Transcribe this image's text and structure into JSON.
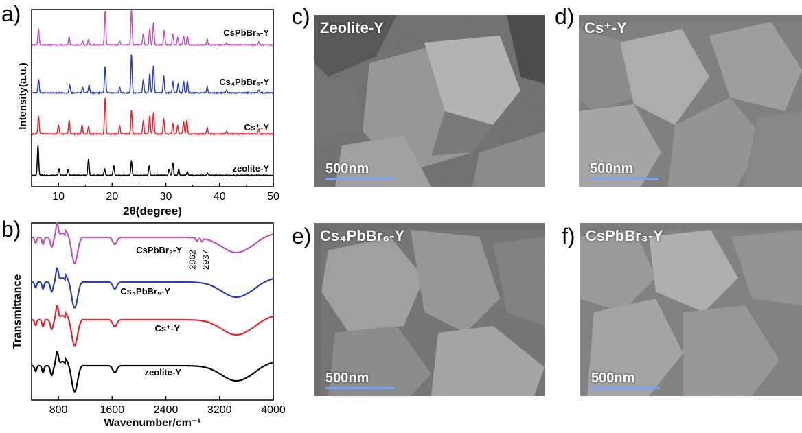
{
  "panels": {
    "a": {
      "letter": "a)",
      "ylabel": "Intensity(a.u.)",
      "xlabel": "2θ(degree)"
    },
    "b": {
      "letter": "b)",
      "ylabel": "Transmittance",
      "xlabel": "Wavenumber/cm⁻¹",
      "annotations": [
        "2862",
        "2937"
      ]
    },
    "c": {
      "letter": "c)",
      "title": "Zeolite-Y",
      "scale": "500nm"
    },
    "d": {
      "letter": "d)",
      "title": "Cs⁺-Y",
      "scale": "500nm"
    },
    "e": {
      "letter": "e)",
      "title": "Cs₄PbBr₆-Y",
      "scale": "500nm"
    },
    "f": {
      "letter": "f)",
      "title": "CsPbBr₃-Y",
      "scale": "500nm"
    }
  },
  "chart_data": [
    {
      "type": "line",
      "ylabel": "Intensity(a.u.)",
      "xlabel": "2θ(degree)",
      "xlim": [
        5,
        50
      ],
      "xticks": [
        10,
        20,
        30,
        40,
        50
      ],
      "series": [
        {
          "name": "zeolite-Y",
          "color": "#000000",
          "peaks": [
            [
              6.2,
              1.0
            ],
            [
              10.1,
              0.22
            ],
            [
              11.8,
              0.18
            ],
            [
              15.6,
              0.55
            ],
            [
              18.6,
              0.2
            ],
            [
              20.3,
              0.32
            ],
            [
              23.6,
              0.48
            ],
            [
              26.9,
              0.32
            ],
            [
              30.6,
              0.2
            ],
            [
              31.3,
              0.42
            ],
            [
              32.4,
              0.2
            ],
            [
              34.0,
              0.12
            ],
            [
              37.8,
              0.06
            ]
          ]
        },
        {
          "name": "Cs⁺-Y",
          "color": "#e8232a",
          "peaks": [
            [
              6.3,
              0.5
            ],
            [
              10.0,
              0.25
            ],
            [
              12.0,
              0.38
            ],
            [
              14.4,
              0.25
            ],
            [
              15.6,
              0.22
            ],
            [
              18.7,
              1.0
            ],
            [
              21.4,
              0.25
            ],
            [
              23.6,
              0.68
            ],
            [
              25.8,
              0.38
            ],
            [
              27.0,
              0.52
            ],
            [
              27.7,
              0.62
            ],
            [
              29.6,
              0.45
            ],
            [
              31.3,
              0.3
            ],
            [
              32.2,
              0.25
            ],
            [
              33.3,
              0.35
            ],
            [
              33.9,
              0.4
            ],
            [
              37.7,
              0.18
            ],
            [
              41.3,
              0.08
            ],
            [
              47.3,
              0.15
            ]
          ]
        },
        {
          "name": "Cs₄PbBr₆-Y",
          "color": "#2a3fb5",
          "peaks": [
            [
              6.3,
              0.35
            ],
            [
              12.1,
              0.2
            ],
            [
              14.5,
              0.15
            ],
            [
              15.7,
              0.2
            ],
            [
              18.7,
              0.7
            ],
            [
              21.4,
              0.15
            ],
            [
              23.6,
              1.0
            ],
            [
              25.8,
              0.35
            ],
            [
              27.0,
              0.5
            ],
            [
              27.7,
              0.72
            ],
            [
              29.6,
              0.45
            ],
            [
              31.3,
              0.3
            ],
            [
              32.3,
              0.25
            ],
            [
              33.3,
              0.3
            ],
            [
              34.0,
              0.3
            ],
            [
              37.7,
              0.15
            ],
            [
              41.3,
              0.08
            ],
            [
              47.3,
              0.08
            ]
          ]
        },
        {
          "name": "CsPbBr₃-Y",
          "color": "#c350b8",
          "peaks": [
            [
              6.3,
              0.45
            ],
            [
              12.0,
              0.22
            ],
            [
              14.5,
              0.12
            ],
            [
              15.6,
              0.15
            ],
            [
              18.7,
              0.95
            ],
            [
              21.4,
              0.1
            ],
            [
              23.6,
              1.0
            ],
            [
              25.8,
              0.32
            ],
            [
              27.0,
              0.45
            ],
            [
              27.7,
              0.62
            ],
            [
              29.7,
              0.4
            ],
            [
              31.3,
              0.3
            ],
            [
              32.2,
              0.2
            ],
            [
              33.3,
              0.25
            ],
            [
              34.0,
              0.25
            ],
            [
              37.7,
              0.15
            ],
            [
              41.3,
              0.05
            ],
            [
              47.3,
              0.08
            ]
          ]
        }
      ]
    },
    {
      "type": "line",
      "ylabel": "Transmittance",
      "xlabel": "Wavenumber/cm⁻¹",
      "xlim": [
        400,
        4000
      ],
      "xticks": [
        800,
        1600,
        2400,
        3200,
        4000
      ],
      "series": [
        {
          "name": "zeolite-Y",
          "color": "#000000"
        },
        {
          "name": "Cs⁺-Y",
          "color": "#e8232a"
        },
        {
          "name": "Cs₄PbBr₆-Y",
          "color": "#2a3fb5"
        },
        {
          "name": "CsPbBr₃-Y",
          "color": "#c350b8"
        }
      ]
    }
  ]
}
